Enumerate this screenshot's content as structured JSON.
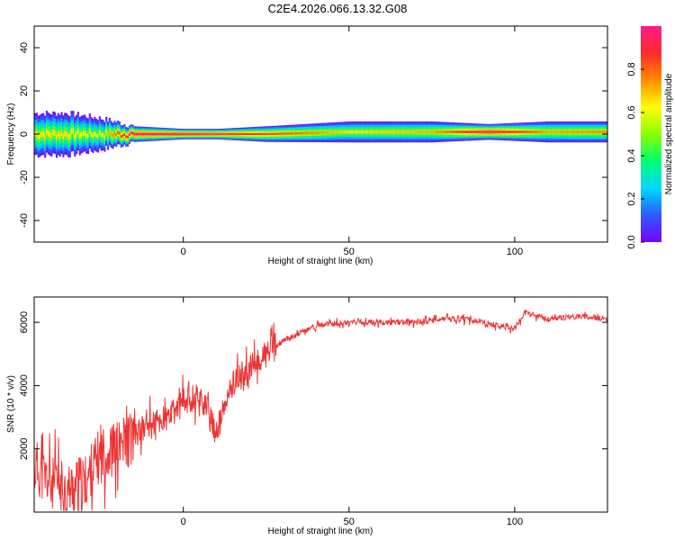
{
  "title": "C2E4.2026.066.13.32.G08",
  "chart_data": [
    {
      "type": "heatmap",
      "xlabel": "Height of straight line (km)",
      "ylabel": "Frequency (Hz)",
      "xlim": [
        -45,
        128
      ],
      "ylim": [
        -50,
        50
      ],
      "x_ticks": [
        0,
        50,
        100
      ],
      "y_ticks": [
        -40,
        -20,
        0,
        20,
        40
      ],
      "colorbar": {
        "label": "Normalized spectral amplitude",
        "range": [
          0.0,
          1.0
        ],
        "ticks": [
          "0.0",
          "0.2",
          "0.4",
          "0.6",
          "0.8"
        ],
        "colormap": [
          "#7a00ff",
          "#2d5bff",
          "#00d8ff",
          "#00ff70",
          "#8cff00",
          "#ffff00",
          "#ff8c00",
          "#ff2a2a",
          "#ff1a8c"
        ]
      },
      "ridge": [
        {
          "x": -45,
          "freq": 0,
          "spread": 8,
          "amp": 0.55
        },
        {
          "x": -35,
          "freq": 0,
          "spread": 8,
          "amp": 0.55
        },
        {
          "x": -25,
          "freq": 0,
          "spread": 6,
          "amp": 0.5
        },
        {
          "x": -15,
          "freq": 0,
          "spread": 3,
          "amp": 0.9
        },
        {
          "x": 0,
          "freq": 0,
          "spread": 2,
          "amp": 0.95
        },
        {
          "x": 10,
          "freq": 0,
          "spread": 2,
          "amp": 0.9
        },
        {
          "x": 25,
          "freq": 0,
          "spread": 3,
          "amp": 0.75
        },
        {
          "x": 50,
          "freq": 1,
          "spread": 4,
          "amp": 0.55
        },
        {
          "x": 75,
          "freq": 1,
          "spread": 4,
          "amp": 0.6
        },
        {
          "x": 92,
          "freq": 1,
          "spread": 3,
          "amp": 0.9
        },
        {
          "x": 110,
          "freq": 1,
          "spread": 4,
          "amp": 0.6
        },
        {
          "x": 128,
          "freq": 1,
          "spread": 4,
          "amp": 0.65
        }
      ]
    },
    {
      "type": "line",
      "xlabel": "Height of straight line (km)",
      "ylabel": "SNR (10 * v/v)",
      "xlim": [
        -45,
        128
      ],
      "ylim": [
        0,
        6800
      ],
      "x_ticks": [
        0,
        50,
        100
      ],
      "y_ticks": [
        2000,
        4000,
        6000
      ],
      "series": [
        {
          "color": "#ee3333",
          "x": [
            -45,
            -40,
            -35,
            -30,
            -25,
            -20,
            -15,
            -10,
            -5,
            0,
            5,
            10,
            15,
            20,
            25,
            30,
            40,
            50,
            60,
            70,
            80,
            85,
            90,
            95,
            100,
            103,
            110,
            120,
            128
          ],
          "y": [
            1500,
            900,
            700,
            900,
            1800,
            2000,
            2400,
            2800,
            2900,
            3500,
            3700,
            2500,
            4100,
            4500,
            5000,
            5400,
            5900,
            6000,
            6000,
            6000,
            6100,
            6100,
            6000,
            5900,
            5800,
            6300,
            6100,
            6200,
            6100
          ]
        }
      ]
    }
  ]
}
